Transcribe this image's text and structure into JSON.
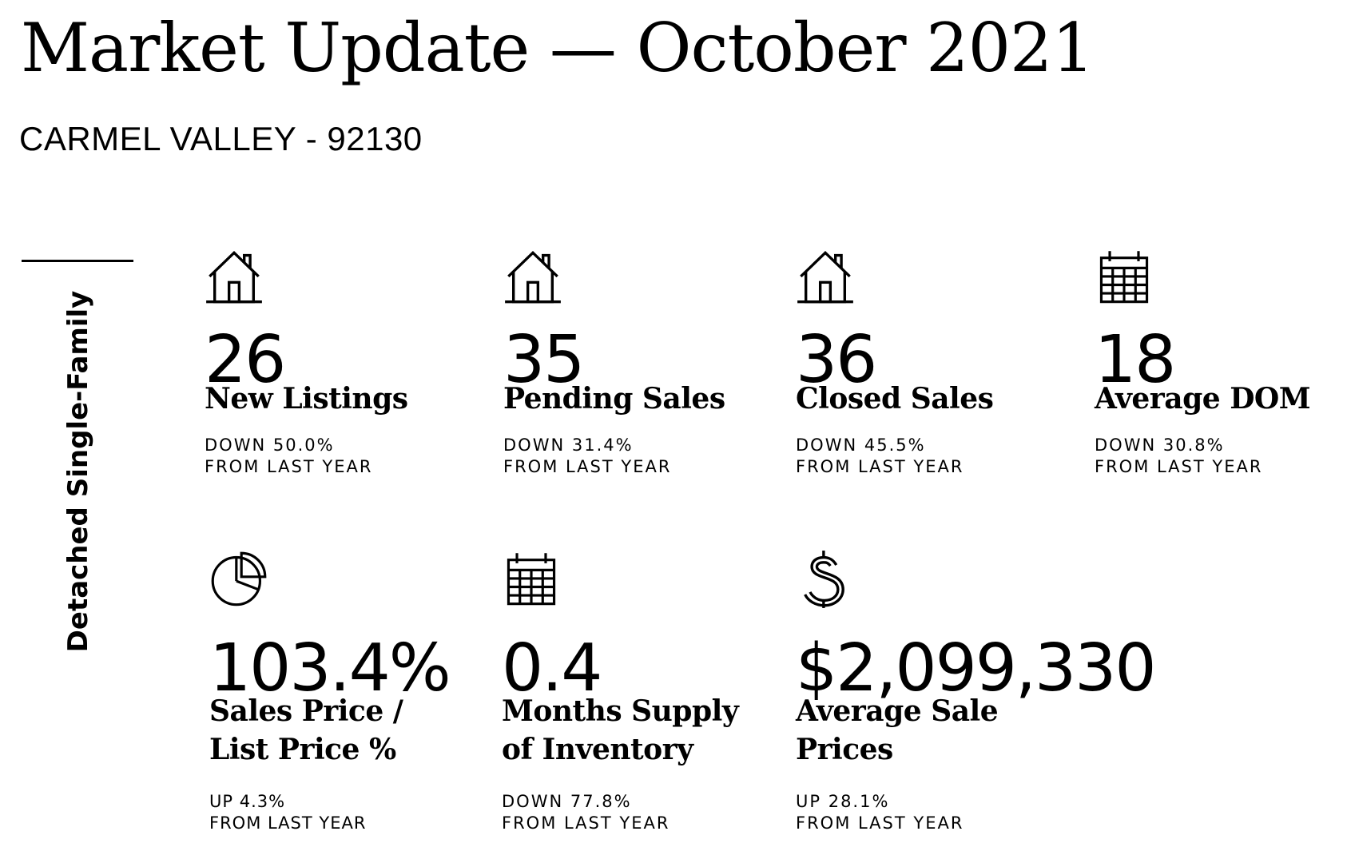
{
  "header": {
    "title": "Market Update — October 2021",
    "subtitle": "CARMEL VALLEY - 92130"
  },
  "sidebar": {
    "label": "Detached Single-Family"
  },
  "stats": [
    {
      "icon": "house-icon",
      "value": "26",
      "label": "New Listings",
      "change_line1": "DOWN 50.0%",
      "change_line2": "FROM LAST YEAR"
    },
    {
      "icon": "house-icon",
      "value": "35",
      "label": "Pending Sales",
      "change_line1": "DOWN 31.4%",
      "change_line2": "FROM LAST YEAR"
    },
    {
      "icon": "house-icon",
      "value": "36",
      "label": "Closed Sales",
      "change_line1": "DOWN 45.5%",
      "change_line2": "FROM LAST YEAR"
    },
    {
      "icon": "calendar-icon",
      "value": "18",
      "label": "Average DOM",
      "change_line1": "DOWN 30.8%",
      "change_line2": "FROM LAST YEAR"
    },
    {
      "icon": "pie-chart-icon",
      "value": "103.4%",
      "label": "Sales Price /\nList Price %",
      "change_line1": "UP 4.3%",
      "change_line2": "FROM LAST YEAR"
    },
    {
      "icon": "calendar-icon",
      "value": "0.4",
      "label": "Months Supply\nof Inventory",
      "change_line1": "DOWN 77.8%",
      "change_line2": "FROM LAST YEAR"
    },
    {
      "icon": "dollar-icon",
      "value": "$2,099,330",
      "label": "Average Sale\nPrices",
      "change_line1": "UP 28.1%",
      "change_line2": "FROM LAST YEAR"
    }
  ]
}
